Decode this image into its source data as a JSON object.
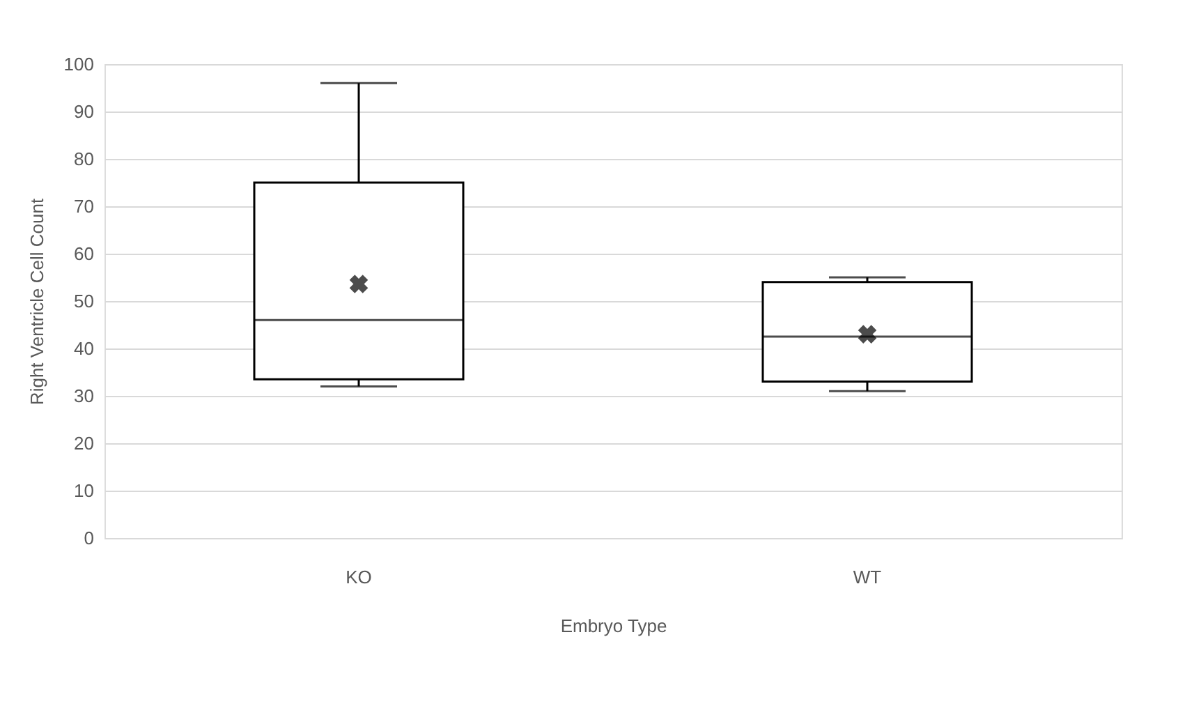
{
  "chart_data": {
    "type": "box",
    "xlabel": "Embryo Type",
    "ylabel": "Right Ventricle Cell Count",
    "categories": [
      "KO",
      "WT"
    ],
    "boxes": [
      {
        "low": 32,
        "q1": 33.5,
        "median": 46,
        "q3": 75,
        "high": 96,
        "mean": 53.6
      },
      {
        "low": 31,
        "q1": 33,
        "median": 42.5,
        "q3": 54,
        "high": 55,
        "mean": 43
      }
    ],
    "color": "#000000",
    "ylim": [
      0,
      100
    ],
    "yticks": [
      0,
      10,
      20,
      30,
      40,
      50,
      60,
      70,
      80,
      90,
      100
    ],
    "grid": "y"
  }
}
